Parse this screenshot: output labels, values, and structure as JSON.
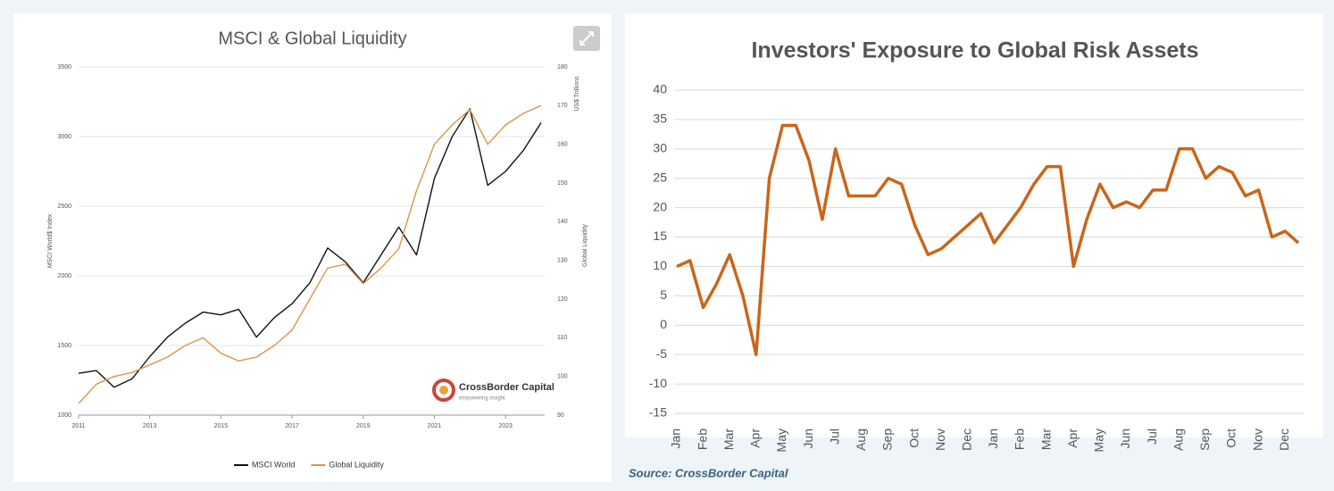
{
  "chart_data": [
    {
      "type": "line",
      "title": "MSCI & Global Liquidity",
      "ylabel": "MSCI World$ Index",
      "y2label": "Global Liquidity",
      "y2unit": "US$ Trillions",
      "x": [
        2011,
        2011.5,
        2012,
        2012.5,
        2013,
        2013.5,
        2014,
        2014.5,
        2015,
        2015.5,
        2016,
        2016.5,
        2017,
        2017.5,
        2018,
        2018.5,
        2019,
        2019.5,
        2020,
        2020.5,
        2021,
        2021.5,
        2022,
        2022.5,
        2023,
        2023.5,
        2024
      ],
      "series": [
        {
          "name": "MSCI World",
          "color": "#111111",
          "values": [
            1300,
            1320,
            1200,
            1260,
            1420,
            1560,
            1660,
            1740,
            1720,
            1760,
            1560,
            1700,
            1800,
            1950,
            2200,
            2100,
            1950,
            2150,
            2350,
            2150,
            2700,
            3000,
            3200,
            2650,
            2750,
            2900,
            3100
          ]
        },
        {
          "name": "Global Liquidity",
          "color": "#d9954f",
          "axis": "y2",
          "values": [
            93,
            98,
            100,
            101,
            103,
            105,
            108,
            110,
            106,
            104,
            105,
            108,
            112,
            120,
            128,
            129,
            124,
            128,
            133,
            148,
            160,
            165,
            169,
            160,
            165,
            168,
            170
          ]
        }
      ],
      "xlim": [
        2011,
        2024.1
      ],
      "xticks": [
        2011,
        2013,
        2015,
        2017,
        2019,
        2021,
        2023
      ],
      "ylim": [
        1000,
        3500
      ],
      "yticks": [
        1000,
        1500,
        2000,
        2500,
        3000,
        3500
      ],
      "y2lim": [
        90,
        180
      ],
      "y2ticks": [
        90,
        100,
        110,
        120,
        130,
        140,
        150,
        160,
        170,
        180
      ],
      "grid": true,
      "legend": "bottom",
      "logo": {
        "name": "CrossBorder Capital",
        "tagline": "empowering insight"
      }
    },
    {
      "type": "line",
      "title": "Investors' Exposure to Global Risk Assets",
      "source": "Source: CrossBorder Capital",
      "x": [
        0,
        0.5,
        1,
        1.5,
        2,
        2.5,
        3,
        3.5,
        4,
        4.5,
        5,
        5.5,
        6,
        6.5,
        7,
        7.5,
        8,
        8.5,
        9,
        9.5,
        10,
        10.5,
        11,
        11.5,
        12,
        12.5,
        13,
        13.5,
        14,
        14.5,
        15,
        15.5,
        16,
        16.5,
        17,
        17.5,
        18,
        18.5,
        19,
        19.5,
        20,
        20.5,
        21,
        21.5,
        22,
        22.5,
        23,
        23.5
      ],
      "series": [
        {
          "name": "Investors' Exposure",
          "color": "#c8661a",
          "values": [
            10,
            11,
            3,
            7,
            12,
            5,
            -5,
            25,
            34,
            34,
            28,
            18,
            30,
            22,
            22,
            22,
            25,
            24,
            17,
            12,
            13,
            15,
            17,
            19,
            14,
            17,
            20,
            24,
            27,
            27,
            10,
            18,
            24,
            20,
            21,
            20,
            23,
            23,
            30,
            30,
            25,
            27,
            26,
            22,
            23,
            15,
            16,
            14
          ]
        }
      ],
      "xlim": [
        -0.1,
        23.7
      ],
      "xticks": [
        {
          "value": 0,
          "label": "Jan"
        },
        {
          "value": 1,
          "label": "Feb"
        },
        {
          "value": 2,
          "label": "Mar"
        },
        {
          "value": 3,
          "label": "Apr"
        },
        {
          "value": 4,
          "label": "May"
        },
        {
          "value": 5,
          "label": "Jun"
        },
        {
          "value": 6,
          "label": "Jul"
        },
        {
          "value": 7,
          "label": "Aug"
        },
        {
          "value": 8,
          "label": "Sep"
        },
        {
          "value": 9,
          "label": "Oct"
        },
        {
          "value": 10,
          "label": "Nov"
        },
        {
          "value": 11,
          "label": "Dec"
        },
        {
          "value": 12,
          "label": "Jan"
        },
        {
          "value": 13,
          "label": "Feb"
        },
        {
          "value": 14,
          "label": "Mar"
        },
        {
          "value": 15,
          "label": "Apr"
        },
        {
          "value": 16,
          "label": "May"
        },
        {
          "value": 17,
          "label": "Jun"
        },
        {
          "value": 18,
          "label": "Jul"
        },
        {
          "value": 19,
          "label": "Aug"
        },
        {
          "value": 20,
          "label": "Sep"
        },
        {
          "value": 21,
          "label": "Oct"
        },
        {
          "value": 22,
          "label": "Nov"
        },
        {
          "value": 23,
          "label": "Dec"
        }
      ],
      "ylim": [
        -15,
        40
      ],
      "yticks": [
        -15,
        -10,
        -5,
        0,
        5,
        10,
        15,
        20,
        25,
        30,
        35,
        40
      ],
      "grid": true
    }
  ]
}
